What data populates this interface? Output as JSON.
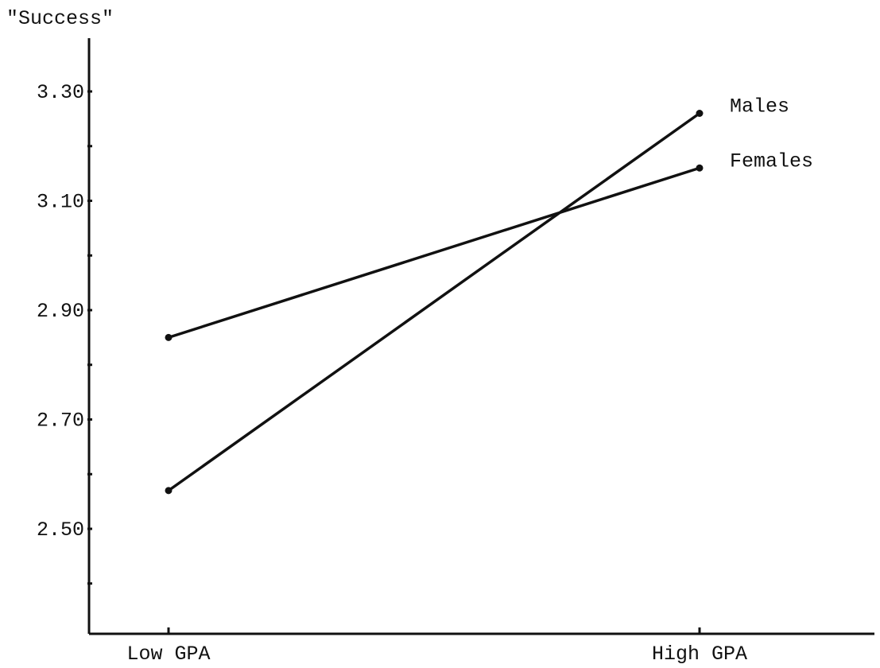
{
  "chart_data": {
    "type": "line",
    "ylabel": "\"Success\"",
    "xlabel": "",
    "categories": [
      "Low GPA",
      "High GPA"
    ],
    "y_ticks": [
      2.5,
      2.7,
      2.9,
      3.1,
      3.3
    ],
    "y_tick_labels": [
      "2.50",
      "2.70",
      "2.90",
      "3.10",
      "3.30"
    ],
    "ylim": [
      2.34,
      3.4
    ],
    "grid": false,
    "legend": "series labels placed at right end of lines",
    "series": [
      {
        "name": "Males",
        "values": [
          2.57,
          3.26
        ]
      },
      {
        "name": "Females",
        "values": [
          2.85,
          3.16
        ]
      }
    ],
    "line_color": "#111111"
  }
}
